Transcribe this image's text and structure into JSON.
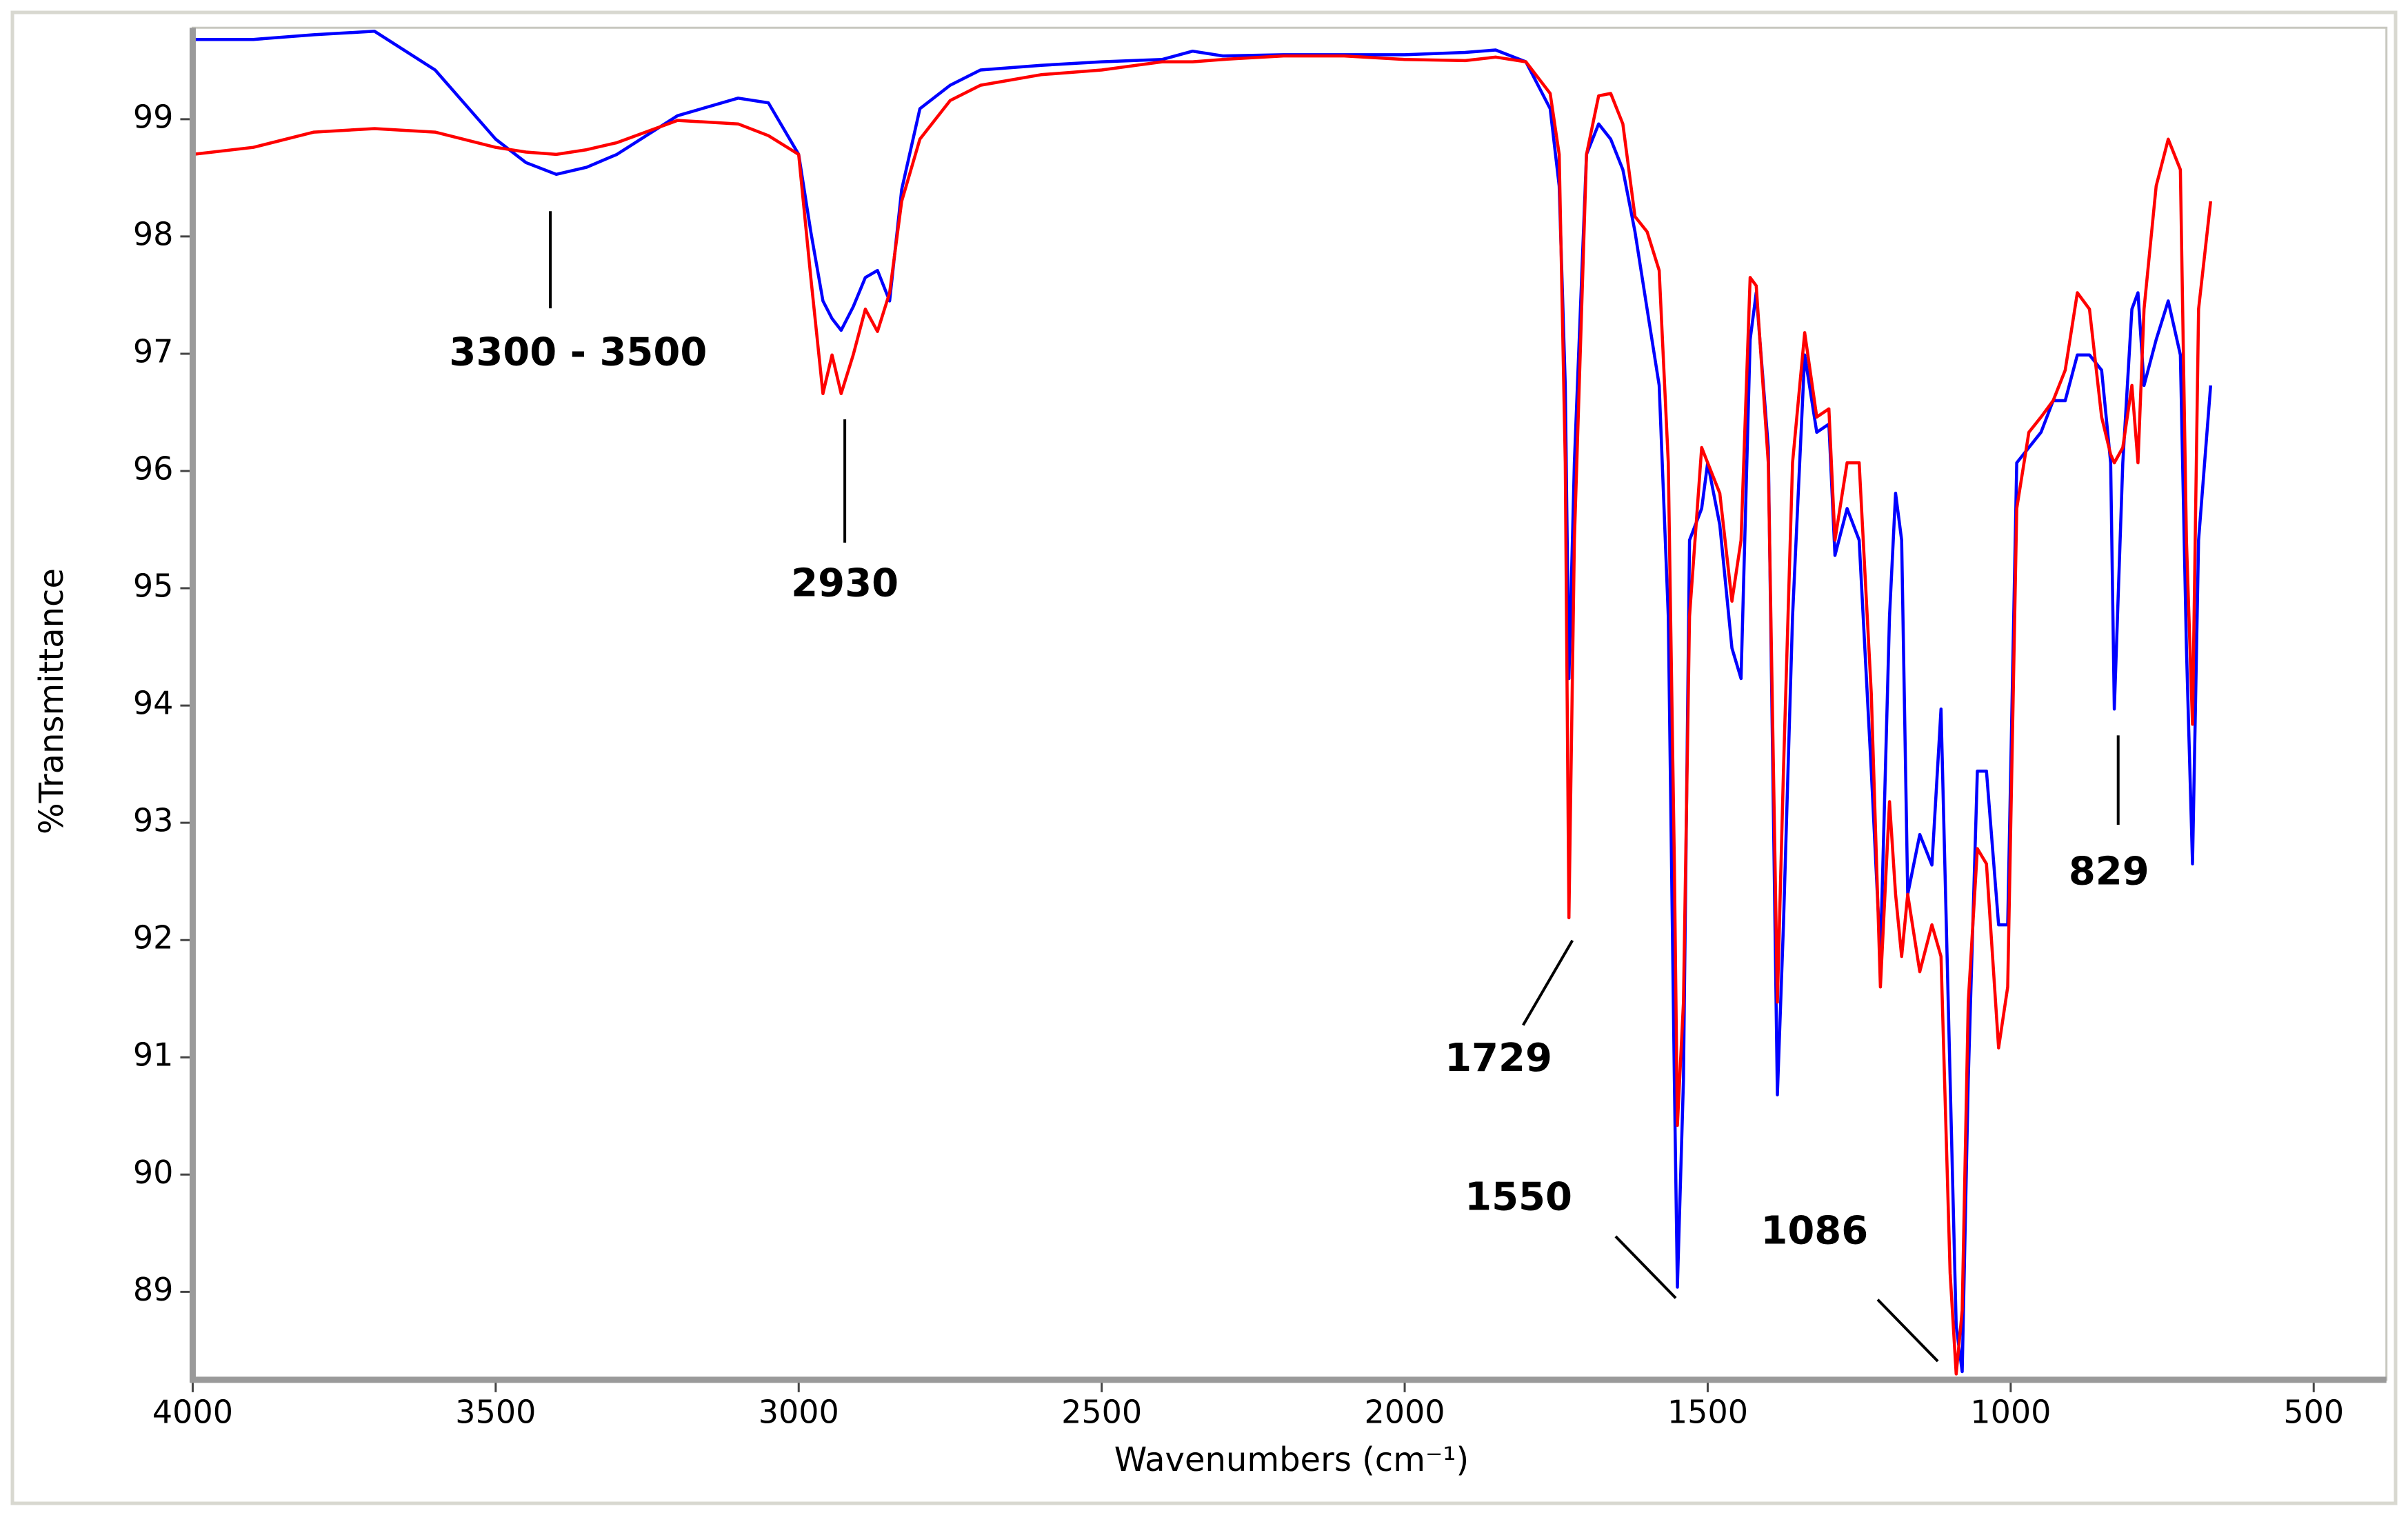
{
  "chart_data": {
    "type": "line",
    "x_label": "Wavenumbers (cm⁻¹)",
    "y_label": "%Transmittance",
    "xlim": [
      4000,
      380
    ],
    "ylim": [
      88.25,
      99.78
    ],
    "xticks": [
      4000,
      3500,
      3000,
      2500,
      2000,
      1500,
      1000,
      500
    ],
    "yticks": [
      89,
      90,
      91,
      92,
      93,
      94,
      95,
      96,
      97,
      98,
      99
    ],
    "grid": false,
    "x": [
      4000,
      3900,
      3800,
      3700,
      3600,
      3500,
      3450,
      3400,
      3350,
      3300,
      3200,
      3100,
      3050,
      3000,
      2980,
      2960,
      2945,
      2930,
      2910,
      2890,
      2870,
      2850,
      2830,
      2800,
      2750,
      2700,
      2600,
      2500,
      2400,
      2350,
      2300,
      2200,
      2100,
      2000,
      1900,
      1850,
      1800,
      1760,
      1745,
      1735,
      1729,
      1720,
      1700,
      1680,
      1660,
      1640,
      1620,
      1600,
      1580,
      1565,
      1555,
      1550,
      1540,
      1530,
      1510,
      1500,
      1480,
      1460,
      1445,
      1430,
      1420,
      1400,
      1385,
      1375,
      1360,
      1340,
      1320,
      1300,
      1290,
      1270,
      1250,
      1230,
      1215,
      1200,
      1190,
      1180,
      1170,
      1150,
      1130,
      1115,
      1100,
      1090,
      1080,
      1070,
      1055,
      1040,
      1020,
      1005,
      990,
      970,
      950,
      930,
      910,
      890,
      870,
      850,
      835,
      829,
      815,
      800,
      790,
      780,
      760,
      740,
      720,
      710,
      700,
      690,
      670
    ],
    "series": [
      {
        "color": "#0000ff",
        "values": [
          99.68,
          99.68,
          99.72,
          99.75,
          99.42,
          98.83,
          98.63,
          98.53,
          98.59,
          98.7,
          99.03,
          99.18,
          99.14,
          98.7,
          98.04,
          97.45,
          97.3,
          97.2,
          97.4,
          97.65,
          97.71,
          97.45,
          98.4,
          99.09,
          99.29,
          99.42,
          99.46,
          99.49,
          99.51,
          99.58,
          99.54,
          99.55,
          99.55,
          99.55,
          99.57,
          99.59,
          99.49,
          99.09,
          98.43,
          96.73,
          94.23,
          96.07,
          98.7,
          98.96,
          98.83,
          98.57,
          98.04,
          97.38,
          96.73,
          94.76,
          90.81,
          89.04,
          90.81,
          95.41,
          95.68,
          96.07,
          95.54,
          94.49,
          94.23,
          97.12,
          97.52,
          96.2,
          90.68,
          92.13,
          94.76,
          96.99,
          96.33,
          96.4,
          95.28,
          95.68,
          95.41,
          93.44,
          91.86,
          94.76,
          95.81,
          95.41,
          92.39,
          92.9,
          92.64,
          93.97,
          90.81,
          88.71,
          88.32,
          90.81,
          93.44,
          93.44,
          92.13,
          92.13,
          96.07,
          96.2,
          96.33,
          96.6,
          96.6,
          96.99,
          96.99,
          96.86,
          96.07,
          93.97,
          96.07,
          97.38,
          97.52,
          96.73,
          97.12,
          97.45,
          96.99,
          94.49,
          92.65,
          95.41,
          96.73
        ]
      },
      {
        "color": "#ff0000",
        "values": [
          98.7,
          98.76,
          98.89,
          98.92,
          98.89,
          98.76,
          98.72,
          98.7,
          98.74,
          98.8,
          98.99,
          98.96,
          98.86,
          98.7,
          97.65,
          96.66,
          96.99,
          96.66,
          96.99,
          97.38,
          97.19,
          97.52,
          98.3,
          98.83,
          99.16,
          99.29,
          99.38,
          99.42,
          99.49,
          99.49,
          99.51,
          99.54,
          99.54,
          99.51,
          99.5,
          99.53,
          99.49,
          99.22,
          98.7,
          96.07,
          92.19,
          95.41,
          98.7,
          99.2,
          99.22,
          98.96,
          98.17,
          98.04,
          97.71,
          96.07,
          92.65,
          90.42,
          91.47,
          94.76,
          96.2,
          96.07,
          95.81,
          94.89,
          95.41,
          97.65,
          97.58,
          96.07,
          91.47,
          93.44,
          96.07,
          97.18,
          96.46,
          96.53,
          95.41,
          96.07,
          96.07,
          94.1,
          91.6,
          93.18,
          92.39,
          91.86,
          92.39,
          91.73,
          92.13,
          91.86,
          89.16,
          88.3,
          88.84,
          91.47,
          92.78,
          92.65,
          91.08,
          91.6,
          95.68,
          96.33,
          96.46,
          96.6,
          96.86,
          97.52,
          97.38,
          96.46,
          96.14,
          96.07,
          96.2,
          96.73,
          96.07,
          97.38,
          98.43,
          98.83,
          98.57,
          95.41,
          93.84,
          97.38,
          98.3
        ]
      }
    ],
    "annotations": [
      "3300 - 3500",
      "2930",
      "1729",
      "1550",
      "1086",
      "829"
    ]
  }
}
